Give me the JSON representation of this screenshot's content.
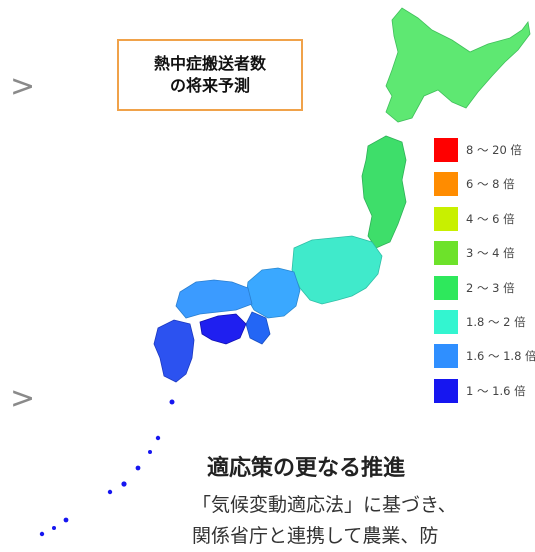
{
  "title_box": {
    "line1": "熱中症搬送者数",
    "line2": "の将来予測"
  },
  "nav": {
    "chevron_top": ">",
    "chevron_bottom": ">"
  },
  "legend": [
    {
      "label": "8 ～ 20 倍",
      "color": "#ff0000"
    },
    {
      "label": "6 ～ 8 倍",
      "color": "#ff8c00"
    },
    {
      "label": "4 ～ 6 倍",
      "color": "#c8f000"
    },
    {
      "label": "3 ～ 4 倍",
      "color": "#6de22a"
    },
    {
      "label": "2 ～ 3 倍",
      "color": "#2ee85c"
    },
    {
      "label": "1.8 ～ 2 倍",
      "color": "#33f5d0"
    },
    {
      "label": "1.6 ～ 1.8 倍",
      "color": "#2f8fff"
    },
    {
      "label": "1 ～ 1.6 倍",
      "color": "#1616f0"
    }
  ],
  "section": {
    "heading": "適応策の更なる推進",
    "line1": "「気候変動適応法」に基づき、",
    "line2": "関係省庁と連携して農業、防"
  }
}
